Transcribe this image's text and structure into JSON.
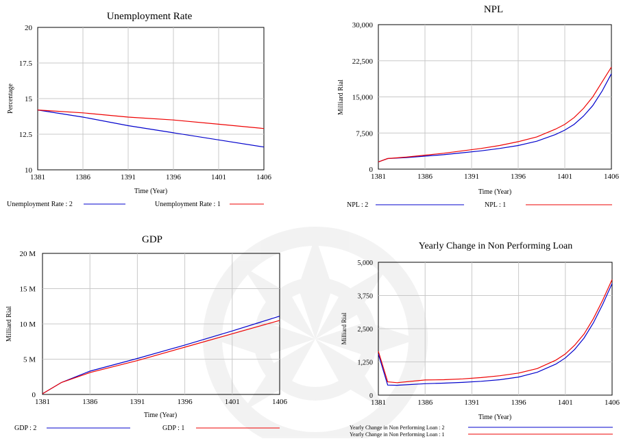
{
  "chart_data": [
    {
      "type": "line",
      "title": "Unemployment Rate",
      "xlabel": "Time (Year)",
      "ylabel": "Percentage",
      "x_ticks": [
        "1381",
        "1386",
        "1391",
        "1396",
        "1401",
        "1406"
      ],
      "y_ticks": [
        "10",
        "12.5",
        "15",
        "17.5",
        "20"
      ],
      "xlim": [
        1381,
        1406
      ],
      "ylim": [
        10,
        20
      ],
      "grid": true,
      "legend_position": "bottom",
      "x": [
        1381,
        1386,
        1391,
        1396,
        1401,
        1406
      ],
      "series": [
        {
          "name": "Unemployment Rate : 2",
          "color": "#0000cc",
          "values": [
            14.2,
            13.7,
            13.1,
            12.6,
            12.1,
            11.6
          ]
        },
        {
          "name": "Unemployment Rate : 1",
          "color": "#ee0000",
          "values": [
            14.2,
            14.0,
            13.7,
            13.5,
            13.2,
            12.9
          ]
        }
      ]
    },
    {
      "type": "line",
      "title": "NPL",
      "xlabel": "Time (Year)",
      "ylabel": "Milliard Rial",
      "x_ticks": [
        "1381",
        "1386",
        "1391",
        "1396",
        "1401",
        "1406"
      ],
      "y_ticks": [
        "0",
        "7,500",
        "15,000",
        "22,500",
        "30,000"
      ],
      "xlim": [
        1381,
        1406
      ],
      "ylim": [
        0,
        30000
      ],
      "grid": true,
      "legend_position": "bottom",
      "x": [
        1381,
        1382,
        1384,
        1386,
        1388,
        1390,
        1392,
        1394,
        1396,
        1398,
        1400,
        1401,
        1402,
        1403,
        1404,
        1405,
        1406
      ],
      "series": [
        {
          "name": "NPL : 2",
          "color": "#0000cc",
          "values": [
            1500,
            2200,
            2400,
            2700,
            3000,
            3400,
            3800,
            4300,
            4900,
            5800,
            7200,
            8100,
            9300,
            11000,
            13200,
            16200,
            19800
          ]
        },
        {
          "name": "NPL : 1",
          "color": "#ee0000",
          "values": [
            1500,
            2200,
            2500,
            2900,
            3300,
            3800,
            4300,
            4900,
            5700,
            6700,
            8300,
            9300,
            10700,
            12600,
            15000,
            18100,
            21200
          ]
        }
      ]
    },
    {
      "type": "line",
      "title": "GDP",
      "xlabel": "Time (Year)",
      "ylabel": "Milliard Rial",
      "x_ticks": [
        "1381",
        "1386",
        "1391",
        "1396",
        "1401",
        "1406"
      ],
      "y_ticks": [
        "0",
        "5 M",
        "10 M",
        "15 M",
        "20 M"
      ],
      "xlim": [
        1381,
        1406
      ],
      "ylim": [
        0,
        20
      ],
      "grid": true,
      "legend_position": "bottom",
      "x": [
        1381,
        1383,
        1386,
        1391,
        1396,
        1401,
        1406
      ],
      "series": [
        {
          "name": "GDP : 2",
          "color": "#0000cc",
          "values": [
            0.1,
            1.7,
            3.3,
            5.1,
            7.0,
            9.0,
            11.1
          ]
        },
        {
          "name": "GDP : 1",
          "color": "#ee0000",
          "values": [
            0.1,
            1.7,
            3.1,
            4.8,
            6.7,
            8.6,
            10.5
          ]
        }
      ]
    },
    {
      "type": "line",
      "title": "Yearly Change in Non Performing Loan",
      "xlabel": "Time (Year)",
      "ylabel": "Milliard Rial",
      "x_ticks": [
        "1381",
        "1386",
        "1391",
        "1396",
        "1401",
        "1406"
      ],
      "y_ticks": [
        "0",
        "1,250",
        "2,500",
        "3,750",
        "5,000"
      ],
      "xlim": [
        1381,
        1406
      ],
      "ylim": [
        0,
        5000
      ],
      "grid": true,
      "legend_position": "bottom",
      "x": [
        1381,
        1382,
        1383,
        1386,
        1388,
        1390,
        1392,
        1394,
        1396,
        1398,
        1400,
        1401,
        1402,
        1403,
        1404,
        1405,
        1406
      ],
      "series": [
        {
          "name": "Yearly Change in Non Performing Loan : 2",
          "color": "#0000cc",
          "values": [
            1550,
            380,
            370,
            430,
            450,
            480,
            520,
            580,
            680,
            860,
            1170,
            1400,
            1720,
            2150,
            2720,
            3420,
            4200
          ]
        },
        {
          "name": "Yearly Change in Non Performing Loan : 1",
          "color": "#ee0000",
          "values": [
            1650,
            500,
            470,
            570,
            580,
            610,
            660,
            730,
            830,
            1000,
            1320,
            1550,
            1880,
            2300,
            2880,
            3580,
            4350
          ]
        }
      ]
    }
  ]
}
